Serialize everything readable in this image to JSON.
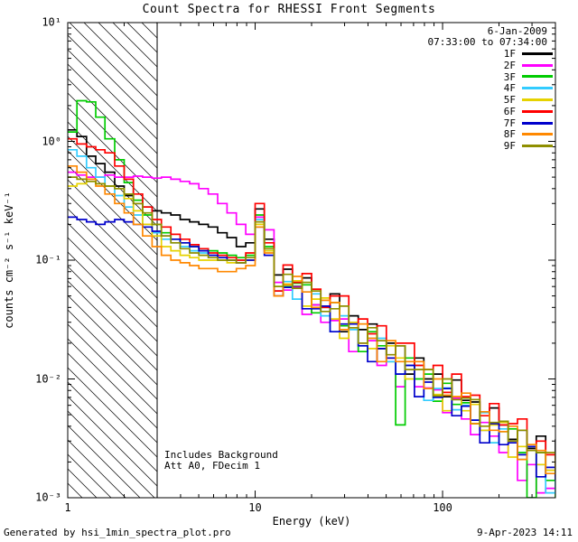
{
  "header": {
    "date_line1": "6-Jan-2009",
    "date_line2": "07:33:00 to 07:34:00"
  },
  "annotations": {
    "line1": "Includes Background",
    "line2": "Att A0, FDecim 1"
  },
  "footer": {
    "left": "Generated by hsi_1min_spectra_plot.pro",
    "right": "9-Apr-2023 14:11"
  },
  "chart_data": {
    "type": "line",
    "subtype": "step-spectra",
    "title": "Count Spectra for RHESSI Front Segments",
    "xlabel": "Energy (keV)",
    "ylabel": "counts cm⁻² s⁻¹ keV⁻¹",
    "xscale": "log",
    "yscale": "log",
    "xlim": [
      1,
      400
    ],
    "ylim": [
      0.001,
      10
    ],
    "grid": false,
    "legend_position": "top-right-inside",
    "x_ticks": [
      "1",
      "10",
      "100"
    ],
    "x_tick_values": [
      1,
      10,
      100
    ],
    "y_ticks": [
      "10¹",
      "10⁰",
      "10⁻¹",
      "10⁻²",
      "10⁻³"
    ],
    "y_tick_values": [
      10,
      1,
      0.1,
      0.01,
      0.001
    ],
    "hatch_region": {
      "xmin": 1,
      "xmax": 3
    },
    "energies": [
      1.0,
      1.12,
      1.26,
      1.41,
      1.58,
      1.78,
      2.0,
      2.24,
      2.51,
      2.82,
      3.16,
      3.55,
      3.98,
      4.47,
      5.01,
      5.62,
      6.31,
      7.08,
      7.94,
      8.91,
      10.0,
      11.2,
      12.6,
      14.1,
      15.8,
      17.8,
      20.0,
      22.4,
      25.1,
      28.2,
      31.6,
      35.5,
      39.8,
      44.7,
      50.1,
      56.2,
      63.1,
      70.8,
      79.4,
      89.1,
      100,
      112,
      126,
      141,
      158,
      178,
      200,
      224,
      251,
      282,
      316,
      355,
      400
    ],
    "series": [
      {
        "name": "1F",
        "color": "#000000",
        "values": [
          1.25,
          1.1,
          0.75,
          0.65,
          0.55,
          0.42,
          0.35,
          0.3,
          0.28,
          0.26,
          0.25,
          0.24,
          0.22,
          0.21,
          0.2,
          0.19,
          0.17,
          0.155,
          0.13,
          0.14,
          0.27,
          0.15,
          0.075,
          0.084,
          0.06,
          0.071,
          0.042,
          0.046,
          0.052,
          0.025,
          0.034,
          0.026,
          0.029,
          0.018,
          0.02,
          0.019,
          0.011,
          0.015,
          0.01,
          0.011,
          0.0071,
          0.0098,
          0.0066,
          0.0064,
          0.0037,
          0.0057,
          0.0041,
          0.0031,
          0.0037,
          0.0026,
          0.0033,
          0.0017,
          0.0031
        ]
      },
      {
        "name": "2F",
        "color": "#FF00FF",
        "values": [
          0.55,
          0.52,
          0.5,
          0.5,
          0.52,
          0.5,
          0.5,
          0.51,
          0.5,
          0.49,
          0.5,
          0.48,
          0.46,
          0.44,
          0.4,
          0.36,
          0.3,
          0.25,
          0.2,
          0.165,
          0.23,
          0.18,
          0.065,
          0.056,
          0.059,
          0.035,
          0.042,
          0.03,
          0.031,
          0.032,
          0.017,
          0.02,
          0.021,
          0.013,
          0.015,
          0.0086,
          0.013,
          0.0086,
          0.0084,
          0.0081,
          0.0052,
          0.0069,
          0.0046,
          0.0034,
          0.0043,
          0.0033,
          0.0024,
          0.003,
          0.0014,
          0.0019,
          0.0011,
          0.0012,
          0.0019
        ]
      },
      {
        "name": "3F",
        "color": "#00CC00",
        "values": [
          1.2,
          2.2,
          2.15,
          1.6,
          1.05,
          0.7,
          0.45,
          0.32,
          0.24,
          0.2,
          0.17,
          0.15,
          0.14,
          0.13,
          0.125,
          0.12,
          0.115,
          0.11,
          0.105,
          0.11,
          0.24,
          0.13,
          0.06,
          0.06,
          0.064,
          0.062,
          0.036,
          0.04,
          0.044,
          0.028,
          0.03,
          0.017,
          0.025,
          0.019,
          0.014,
          0.0041,
          0.015,
          0.01,
          0.011,
          0.0065,
          0.0092,
          0.0061,
          0.0063,
          0.0042,
          0.0053,
          0.0029,
          0.0036,
          0.0038,
          0.0024,
          0.001,
          0.0024,
          0.0014,
          0.00085
        ]
      },
      {
        "name": "4F",
        "color": "#33CCFF",
        "values": [
          0.85,
          0.75,
          0.6,
          0.5,
          0.42,
          0.35,
          0.28,
          0.24,
          0.2,
          0.17,
          0.15,
          0.14,
          0.13,
          0.12,
          0.115,
          0.11,
          0.105,
          0.1,
          0.1,
          0.105,
          0.22,
          0.12,
          0.055,
          0.066,
          0.047,
          0.054,
          0.052,
          0.034,
          0.025,
          0.034,
          0.026,
          0.019,
          0.022,
          0.022,
          0.014,
          0.011,
          0.013,
          0.013,
          0.0066,
          0.0083,
          0.0084,
          0.0055,
          0.006,
          0.0045,
          0.0052,
          0.0029,
          0.0038,
          0.0029,
          0.0021,
          0.0027,
          0.0019,
          0.0011,
          0.0016
        ]
      },
      {
        "name": "5F",
        "color": "#E6D200",
        "values": [
          0.42,
          0.44,
          0.46,
          0.44,
          0.42,
          0.4,
          0.33,
          0.26,
          0.2,
          0.16,
          0.13,
          0.12,
          0.11,
          0.105,
          0.1,
          0.1,
          0.1,
          0.095,
          0.095,
          0.1,
          0.2,
          0.12,
          0.06,
          0.063,
          0.067,
          0.041,
          0.047,
          0.048,
          0.032,
          0.022,
          0.03,
          0.029,
          0.018,
          0.018,
          0.019,
          0.015,
          0.01,
          0.012,
          0.012,
          0.0074,
          0.0054,
          0.0071,
          0.0054,
          0.0061,
          0.0037,
          0.0041,
          0.0043,
          0.0022,
          0.0027,
          0.0028,
          0.0019,
          0.0017,
          0.002
        ]
      },
      {
        "name": "6F",
        "color": "#FF0000",
        "values": [
          1.05,
          0.95,
          0.9,
          0.85,
          0.8,
          0.62,
          0.48,
          0.36,
          0.28,
          0.22,
          0.19,
          0.165,
          0.15,
          0.135,
          0.125,
          0.115,
          0.11,
          0.105,
          0.1,
          0.115,
          0.3,
          0.14,
          0.055,
          0.091,
          0.065,
          0.077,
          0.057,
          0.04,
          0.05,
          0.05,
          0.029,
          0.032,
          0.024,
          0.028,
          0.015,
          0.02,
          0.02,
          0.013,
          0.012,
          0.013,
          0.0077,
          0.011,
          0.0071,
          0.0073,
          0.0049,
          0.0062,
          0.0041,
          0.0042,
          0.0046,
          0.0025,
          0.003,
          0.0023,
          0.0015
        ]
      },
      {
        "name": "7F",
        "color": "#0000CC",
        "values": [
          0.23,
          0.22,
          0.21,
          0.2,
          0.21,
          0.22,
          0.21,
          0.2,
          0.19,
          0.175,
          0.16,
          0.15,
          0.14,
          0.13,
          0.12,
          0.11,
          0.105,
          0.1,
          0.095,
          0.1,
          0.19,
          0.11,
          0.05,
          0.059,
          0.058,
          0.039,
          0.039,
          0.041,
          0.025,
          0.029,
          0.029,
          0.019,
          0.014,
          0.018,
          0.015,
          0.011,
          0.013,
          0.0071,
          0.0094,
          0.007,
          0.0083,
          0.0049,
          0.0059,
          0.0045,
          0.0029,
          0.0042,
          0.0028,
          0.0029,
          0.0023,
          0.0027,
          0.0015,
          0.0018,
          0.0014
        ]
      },
      {
        "name": "8F",
        "color": "#FF8800",
        "values": [
          0.62,
          0.55,
          0.48,
          0.42,
          0.36,
          0.3,
          0.25,
          0.2,
          0.16,
          0.13,
          0.11,
          0.1,
          0.095,
          0.09,
          0.085,
          0.085,
          0.08,
          0.08,
          0.085,
          0.09,
          0.19,
          0.115,
          0.05,
          0.062,
          0.073,
          0.054,
          0.04,
          0.046,
          0.044,
          0.026,
          0.027,
          0.029,
          0.022,
          0.014,
          0.021,
          0.014,
          0.014,
          0.014,
          0.0083,
          0.01,
          0.0073,
          0.0071,
          0.0076,
          0.0042,
          0.0053,
          0.0037,
          0.0036,
          0.004,
          0.0021,
          0.0028,
          0.0025,
          0.0016,
          0.0021
        ]
      },
      {
        "name": "9F",
        "color": "#8F8F00",
        "values": [
          0.5,
          0.48,
          0.46,
          0.44,
          0.42,
          0.4,
          0.36,
          0.3,
          0.25,
          0.2,
          0.16,
          0.14,
          0.125,
          0.115,
          0.11,
          0.105,
          0.1,
          0.1,
          0.095,
          0.105,
          0.21,
          0.125,
          0.06,
          0.076,
          0.058,
          0.065,
          0.055,
          0.037,
          0.039,
          0.041,
          0.027,
          0.02,
          0.027,
          0.021,
          0.016,
          0.019,
          0.012,
          0.012,
          0.012,
          0.0072,
          0.01,
          0.0067,
          0.0069,
          0.0067,
          0.004,
          0.0043,
          0.0044,
          0.003,
          0.0037,
          0.0025,
          0.0024,
          0.0024,
          0.0016
        ]
      }
    ]
  }
}
